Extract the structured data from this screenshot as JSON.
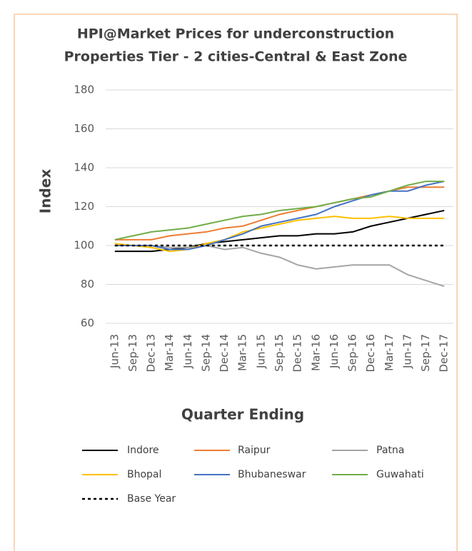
{
  "chart_data": {
    "type": "line",
    "title": [
      "HPI@Market Prices for underconstruction",
      "Properties Tier - 2 cities-Central & East Zone"
    ],
    "y_label": "Index",
    "x_label": "Quarter Ending",
    "categories": [
      "Jun-13",
      "Sep-13",
      "Dec-13",
      "Mar-14",
      "Jun-14",
      "Sep-14",
      "Dec-14",
      "Mar-15",
      "Jun-15",
      "Sep-15",
      "Dec-15",
      "Mar-16",
      "Jun-16",
      "Sep-16",
      "Dec-16",
      "Mar-17",
      "Jun-17",
      "Sep-17",
      "Dec-17"
    ],
    "series": [
      {
        "name": "Indore",
        "color": "#000000",
        "values": [
          97,
          97,
          97,
          98,
          99,
          101,
          102,
          103,
          104,
          105,
          105,
          106,
          106,
          107,
          110,
          112,
          114,
          116,
          118
        ]
      },
      {
        "name": "Raipur",
        "color": "#ed7d31",
        "values": [
          103,
          103,
          103,
          105,
          106,
          107,
          109,
          110,
          113,
          116,
          118,
          120,
          122,
          124,
          126,
          128,
          130,
          130,
          130
        ]
      },
      {
        "name": "Patna",
        "color": "#a5a5a5",
        "values": [
          100,
          100,
          100,
          99,
          99,
          100,
          98,
          99,
          96,
          94,
          90,
          88,
          89,
          90,
          90,
          90,
          85,
          82,
          79
        ]
      },
      {
        "name": "Bhopal",
        "color": "#ffc000",
        "values": [
          101,
          100,
          99,
          97,
          98,
          101,
          103,
          107,
          109,
          111,
          113,
          114,
          115,
          114,
          114,
          115,
          114,
          114,
          114
        ]
      },
      {
        "name": "Bhubaneswar",
        "color": "#4472c4",
        "values": [
          100,
          100,
          100,
          98,
          98,
          100,
          103,
          106,
          110,
          112,
          114,
          116,
          120,
          123,
          126,
          128,
          128,
          131,
          133
        ]
      },
      {
        "name": "Guwahati",
        "color": "#70ad47",
        "values": [
          103,
          105,
          107,
          108,
          109,
          111,
          113,
          115,
          116,
          118,
          119,
          120,
          122,
          124,
          125,
          128,
          131,
          133,
          133
        ]
      },
      {
        "name": "Base Year",
        "color": "#000000",
        "dashed": true,
        "values": [
          100,
          100,
          100,
          100,
          100,
          100,
          100,
          100,
          100,
          100,
          100,
          100,
          100,
          100,
          100,
          100,
          100,
          100,
          100
        ]
      }
    ],
    "ylim": [
      60,
      180
    ],
    "yticks": [
      60,
      80,
      100,
      120,
      140,
      160,
      180
    ],
    "grid": true
  }
}
